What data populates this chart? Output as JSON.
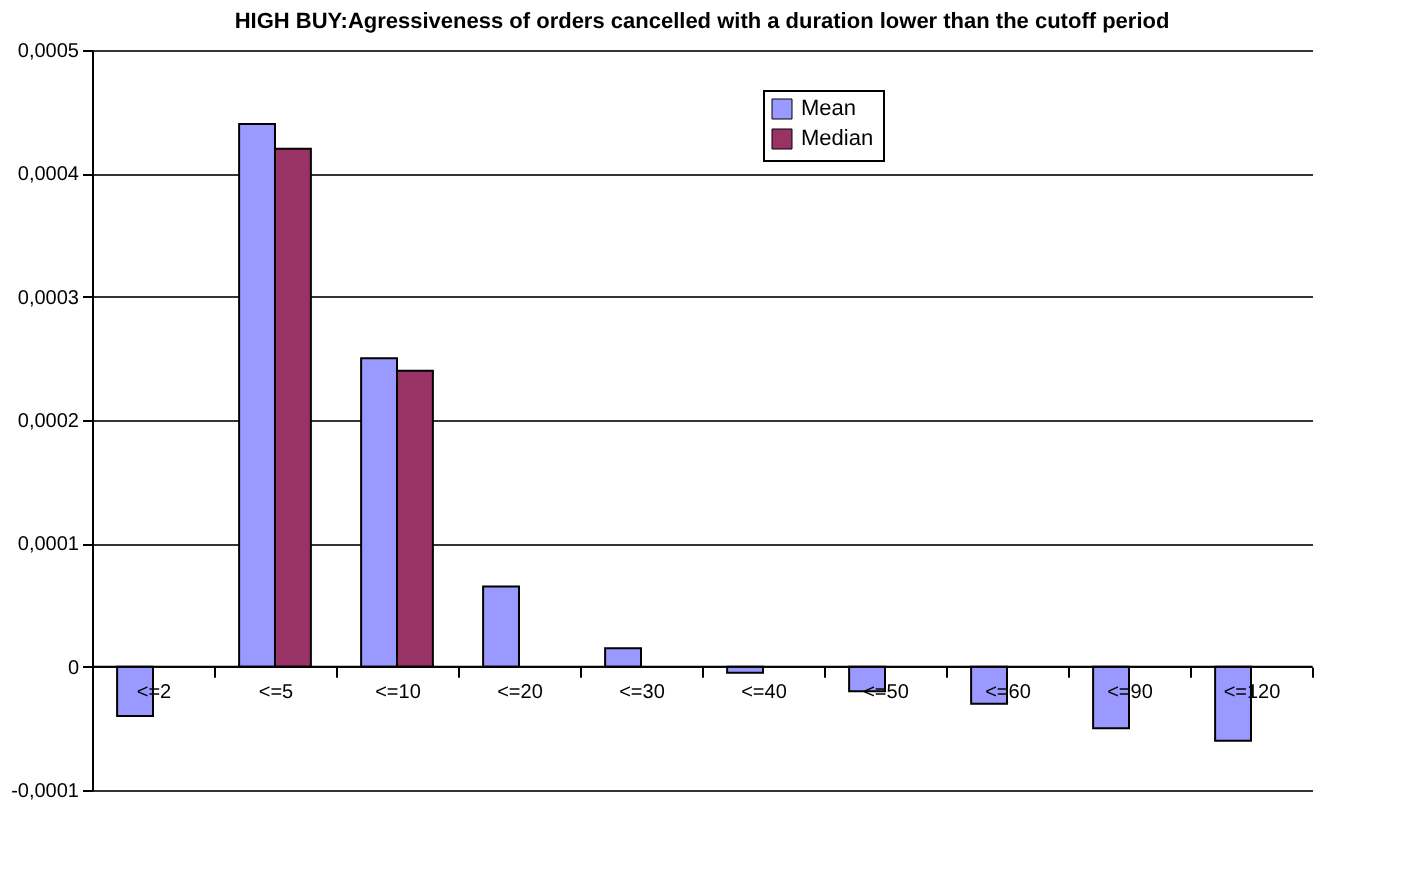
{
  "chart_data": {
    "type": "bar",
    "title": "HIGH BUY:Agressiveness of orders cancelled with a duration lower than the cutoff period",
    "categories": [
      "<=2",
      "<=5",
      "<=10",
      "<=20",
      "<=30",
      "<=40",
      "<=50",
      "<=60",
      "<=90",
      "<=120"
    ],
    "series": [
      {
        "name": "Mean",
        "color": "#9999ff",
        "values": [
          -4e-05,
          0.00044,
          0.00025,
          6.5e-05,
          1.5e-05,
          -5e-06,
          -2e-05,
          -3e-05,
          -5e-05,
          -6e-05
        ]
      },
      {
        "name": "Median",
        "color": "#993366",
        "values": [
          null,
          0.00042,
          0.00024,
          null,
          null,
          null,
          null,
          null,
          null,
          null
        ]
      }
    ],
    "ylim": [
      -0.0001,
      0.0005
    ],
    "yticks": [
      {
        "value": -0.0001,
        "label": "-0,0001"
      },
      0,
      {
        "value": 0.0001,
        "label": "0,0001"
      },
      {
        "value": 0.0002,
        "label": "0,0002"
      },
      {
        "value": 0.0003,
        "label": "0,0003"
      },
      {
        "value": 0.0004,
        "label": "0,0004"
      },
      {
        "value": 0.0005,
        "label": "0,0005"
      }
    ],
    "grid": "y",
    "legend": "top right"
  }
}
